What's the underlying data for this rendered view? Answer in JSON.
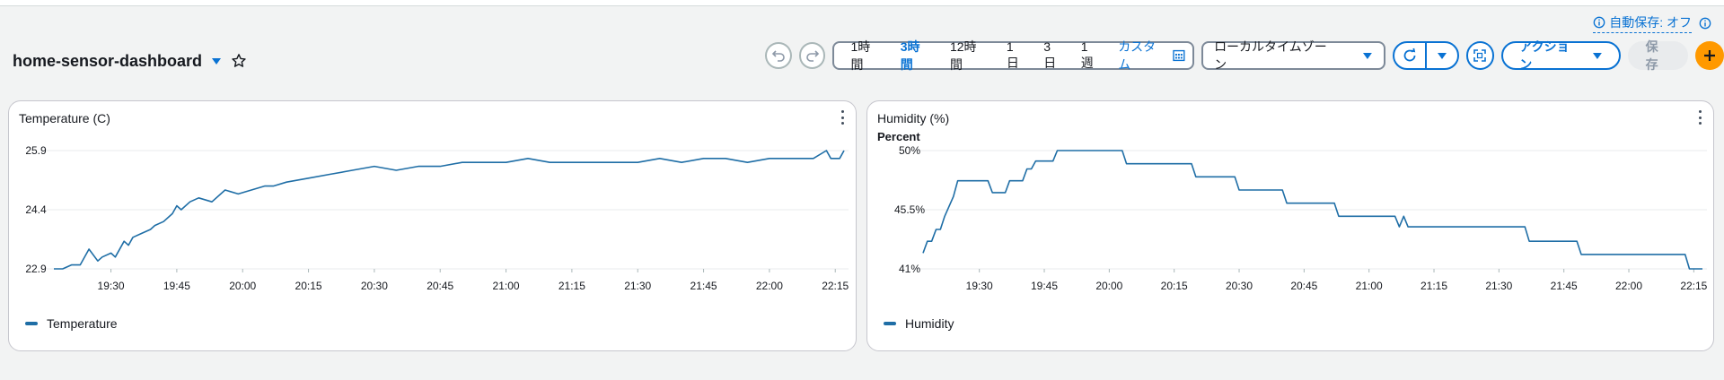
{
  "autosave": {
    "label": "自動保存: オフ"
  },
  "dashboard": {
    "title": "home-sensor-dashboard"
  },
  "time_range": {
    "options": [
      "1時間",
      "3時間",
      "12時間",
      "1日",
      "3日",
      "1週"
    ],
    "active": "3時間",
    "custom_label": "カスタム"
  },
  "timezone": {
    "selected": "ローカルタイムゾーン"
  },
  "actions": {
    "label": "アクション"
  },
  "save": {
    "label": "保存"
  },
  "colors": {
    "accent": "#0972d3",
    "series": "#1f6ea6",
    "plus": "#ff9900"
  },
  "chart_data": [
    {
      "type": "line",
      "title": "Temperature (C)",
      "xlabel": "",
      "ylabel": "",
      "x_ticks": [
        "19:30",
        "19:45",
        "20:00",
        "20:15",
        "20:30",
        "20:45",
        "21:00",
        "21:15",
        "21:30",
        "21:45",
        "22:00",
        "22:15"
      ],
      "y_ticks": [
        "22.9",
        "24.4",
        "25.9"
      ],
      "ylim": [
        22.9,
        25.9
      ],
      "xlim": [
        "19:17",
        "22:17"
      ],
      "grid": true,
      "legend_position": "bottom-left",
      "series": [
        {
          "name": "Temperature",
          "color": "#1f6ea6",
          "x": [
            "19:17",
            "19:19",
            "19:21",
            "19:23",
            "19:25",
            "19:27",
            "19:28",
            "19:30",
            "19:31",
            "19:33",
            "19:34",
            "19:35",
            "19:37",
            "19:39",
            "19:40",
            "19:42",
            "19:44",
            "19:45",
            "19:46",
            "19:48",
            "19:50",
            "19:53",
            "19:56",
            "19:59",
            "20:02",
            "20:05",
            "20:07",
            "20:10",
            "20:15",
            "20:20",
            "20:25",
            "20:30",
            "20:35",
            "20:40",
            "20:45",
            "20:50",
            "20:55",
            "21:00",
            "21:05",
            "21:10",
            "21:15",
            "21:20",
            "21:25",
            "21:30",
            "21:35",
            "21:40",
            "21:45",
            "21:50",
            "21:55",
            "22:00",
            "22:05",
            "22:10",
            "22:13",
            "22:14",
            "22:15",
            "22:16",
            "22:17"
          ],
          "values": [
            22.9,
            22.9,
            23.0,
            23.0,
            23.4,
            23.1,
            23.2,
            23.3,
            23.2,
            23.6,
            23.5,
            23.7,
            23.8,
            23.9,
            24.0,
            24.1,
            24.3,
            24.5,
            24.4,
            24.6,
            24.7,
            24.6,
            24.9,
            24.8,
            24.9,
            25.0,
            25.0,
            25.1,
            25.2,
            25.3,
            25.4,
            25.5,
            25.4,
            25.5,
            25.5,
            25.6,
            25.6,
            25.6,
            25.7,
            25.6,
            25.6,
            25.6,
            25.6,
            25.6,
            25.7,
            25.6,
            25.7,
            25.7,
            25.6,
            25.7,
            25.7,
            25.7,
            25.9,
            25.7,
            25.7,
            25.7,
            25.9
          ]
        }
      ]
    },
    {
      "type": "line",
      "title": "Humidity (%)",
      "xlabel": "",
      "ylabel": "Percent",
      "x_ticks": [
        "19:30",
        "19:45",
        "20:00",
        "20:15",
        "20:30",
        "20:45",
        "21:00",
        "21:15",
        "21:30",
        "21:45",
        "22:00",
        "22:15"
      ],
      "y_ticks": [
        "41%",
        "45.5%",
        "50%"
      ],
      "ylim": [
        41,
        50
      ],
      "xlim": [
        "19:17",
        "22:17"
      ],
      "grid": true,
      "legend_position": "bottom-left",
      "series": [
        {
          "name": "Humidity",
          "color": "#1f6ea6",
          "x": [
            "19:17",
            "19:18",
            "19:19",
            "19:20",
            "19:21",
            "19:22",
            "19:24",
            "19:25",
            "19:32",
            "19:33",
            "19:36",
            "19:37",
            "19:40",
            "19:41",
            "19:42",
            "19:43",
            "19:47",
            "19:48",
            "19:50",
            "20:03",
            "20:04",
            "20:19",
            "20:20",
            "20:29",
            "20:30",
            "20:40",
            "20:41",
            "20:52",
            "20:53",
            "21:06",
            "21:07",
            "21:08",
            "21:09",
            "21:10",
            "21:36",
            "21:37",
            "21:48",
            "21:49",
            "22:13",
            "22:14",
            "22:17"
          ],
          "values": [
            42.2,
            43.1,
            43.1,
            44.0,
            44.0,
            45.0,
            46.5,
            47.7,
            47.7,
            46.8,
            46.8,
            47.7,
            47.7,
            48.6,
            48.6,
            49.2,
            49.2,
            50.0,
            50.0,
            50.0,
            49.0,
            49.0,
            48.0,
            48.0,
            47.0,
            47.0,
            46.0,
            46.0,
            45.0,
            45.0,
            44.2,
            45.0,
            44.2,
            44.2,
            44.2,
            43.1,
            43.1,
            42.1,
            42.1,
            41.0,
            41.0
          ]
        }
      ]
    }
  ]
}
